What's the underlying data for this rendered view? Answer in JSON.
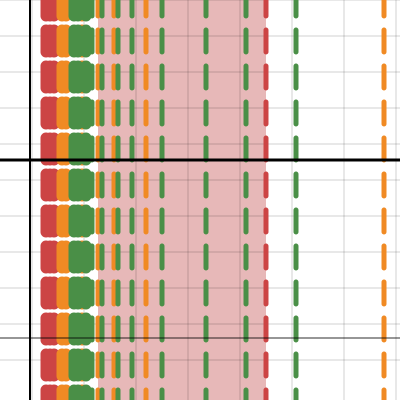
{
  "chart_data": {
    "type": "line",
    "title": "",
    "xlabel": "",
    "ylabel": "",
    "xlim": [
      0,
      100
    ],
    "ylim": [
      0,
      100
    ],
    "grid": true,
    "x_gridlines": [
      8,
      21,
      34,
      47,
      60,
      73,
      86,
      99
    ],
    "y_gridlines": [
      10,
      19,
      28,
      37,
      46,
      55,
      64,
      73,
      82,
      91,
      100
    ],
    "axes": {
      "x_axis_y": 60,
      "y_axis_x": 7.5,
      "secondary_hline_y": 15.5
    },
    "band": {
      "from": 24.5,
      "to": 66.5,
      "color": "#e6b4b4"
    },
    "colors": {
      "red": "#cc4444",
      "orange": "#f08a24",
      "green": "#4a8f47"
    },
    "series": [
      {
        "color": "red",
        "style": "dashed",
        "x": [
          11.5,
          12.5,
          13.5,
          66.5
        ]
      },
      {
        "color": "orange",
        "style": "dashed",
        "x": [
          15.5,
          16.5,
          20.5,
          24.5,
          28.5,
          36.5,
          96.0
        ]
      },
      {
        "color": "green",
        "style": "dashed",
        "x": [
          18.5,
          19.5,
          21.5,
          23.0,
          25.5,
          29.5,
          33.0,
          40.5,
          51.5,
          61.5,
          74.0
        ]
      }
    ]
  }
}
